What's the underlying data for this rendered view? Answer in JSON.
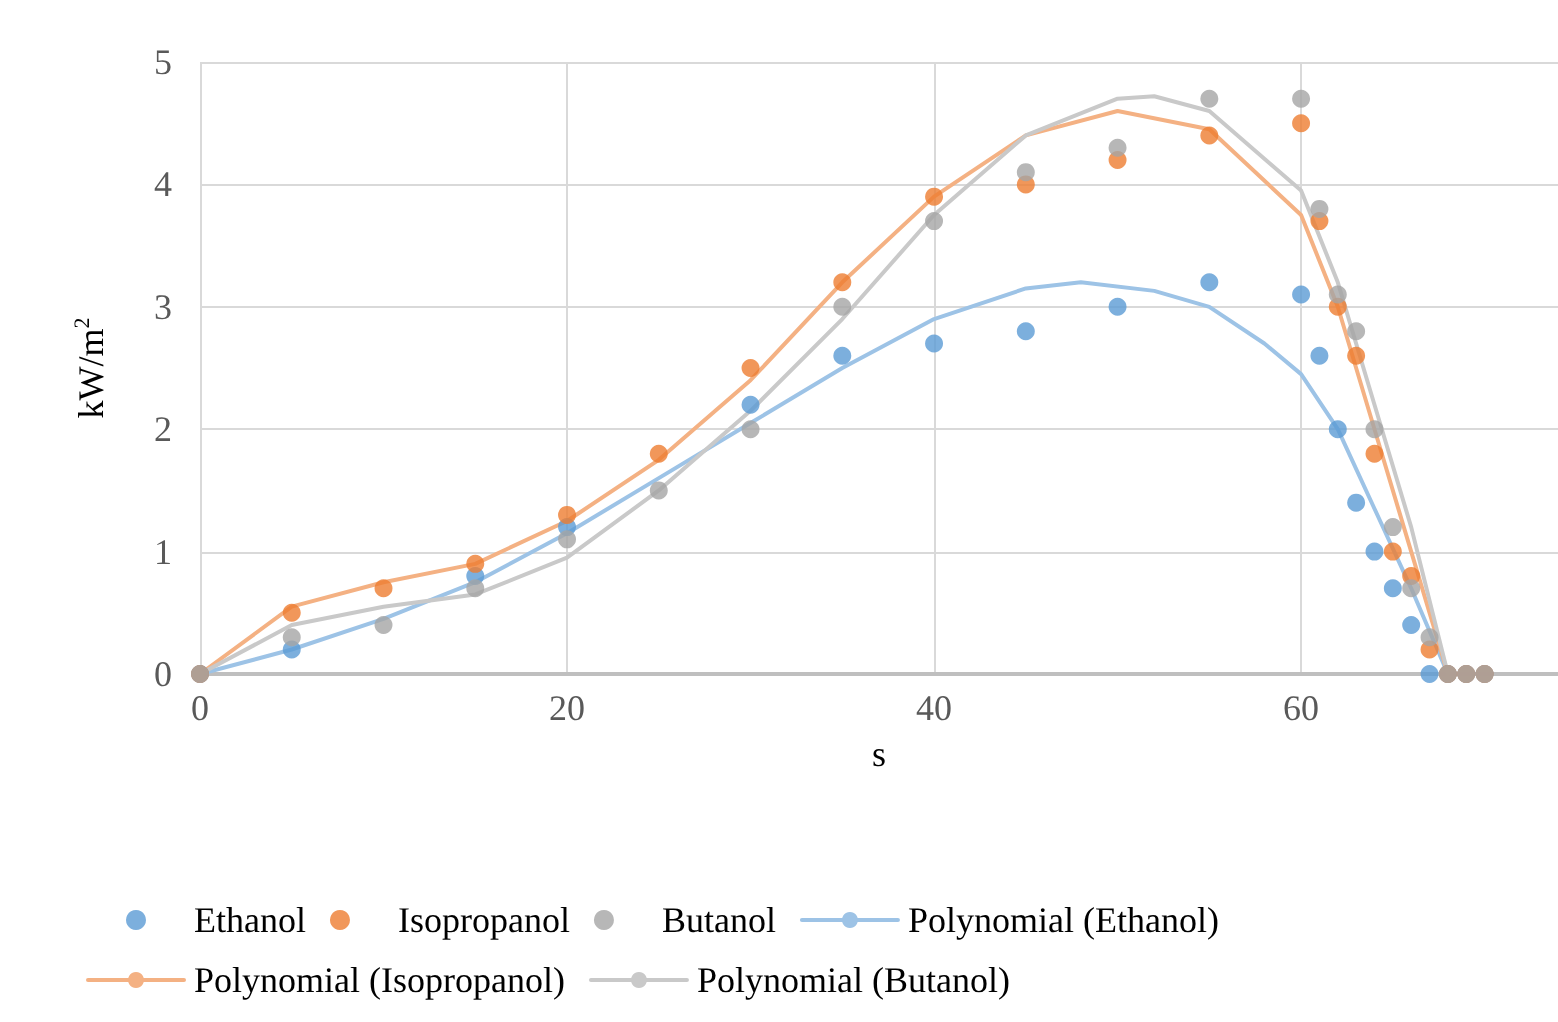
{
  "chart_data": {
    "type": "scatter",
    "xlabel": "s",
    "ylabel": "kW/m$^{2}$",
    "xlim": [
      0,
      74
    ],
    "xticks": [
      0,
      20,
      40,
      60
    ],
    "ylim": [
      0,
      5
    ],
    "yticks": [
      0,
      1,
      2,
      3,
      4,
      5
    ],
    "grid": true,
    "legend": "bottom",
    "marker": "circle",
    "x": [
      0,
      5,
      10,
      15,
      20,
      25,
      30,
      35,
      40,
      45,
      50,
      55,
      60,
      61,
      62,
      63,
      64,
      65,
      66,
      67,
      68,
      69,
      70
    ],
    "series": [
      {
        "name": "Ethanol",
        "color": "#5b9bd5",
        "values": [
          0,
          0.2,
          null,
          0.8,
          1.2,
          null,
          2.2,
          2.6,
          2.7,
          2.8,
          3.0,
          3.2,
          3.1,
          2.6,
          2.0,
          1.4,
          1.0,
          0.7,
          0.4,
          0,
          0,
          0,
          0
        ]
      },
      {
        "name": "Isopropanol",
        "color": "#ed7d31",
        "values": [
          0,
          0.5,
          0.7,
          0.9,
          1.3,
          1.8,
          2.5,
          3.2,
          3.9,
          4.0,
          4.2,
          4.4,
          4.5,
          3.7,
          3.0,
          2.6,
          1.8,
          1.0,
          0.8,
          0.2,
          0,
          0,
          0
        ]
      },
      {
        "name": "Butanol",
        "color": "#a5a5a5",
        "values": [
          0,
          0.3,
          0.4,
          0.7,
          1.1,
          1.5,
          2.0,
          3.0,
          3.7,
          4.1,
          4.3,
          4.7,
          4.7,
          3.8,
          3.1,
          2.8,
          2.0,
          1.2,
          0.7,
          0.3,
          0,
          0,
          0
        ]
      },
      {
        "name": "Polynomial (Ethanol)",
        "type": "line",
        "marker": "none",
        "line_style": "solid",
        "color": "#9dc3e6",
        "x": [
          0,
          5,
          10,
          15,
          20,
          25,
          30,
          35,
          40,
          45,
          48,
          52,
          55,
          58,
          60,
          62,
          64,
          66,
          68
        ],
        "values": [
          0,
          0.2,
          0.45,
          0.75,
          1.15,
          1.6,
          2.05,
          2.5,
          2.9,
          3.15,
          3.2,
          3.13,
          3.0,
          2.7,
          2.45,
          2.0,
          1.35,
          0.7,
          0
        ]
      },
      {
        "name": "Polynomial (Isopropanol)",
        "type": "line",
        "marker": "none",
        "line_style": "solid",
        "color": "#f4b183",
        "x": [
          0,
          5,
          10,
          15,
          20,
          25,
          30,
          35,
          40,
          45,
          50,
          55,
          60,
          62,
          64,
          66,
          68
        ],
        "values": [
          0,
          0.55,
          0.75,
          0.9,
          1.25,
          1.75,
          2.4,
          3.2,
          3.9,
          4.4,
          4.6,
          4.45,
          3.75,
          3.0,
          2.0,
          1.0,
          0
        ]
      },
      {
        "name": "Polynomial (Butanol)",
        "type": "line",
        "marker": "none",
        "line_style": "solid",
        "color": "#c9c9c9",
        "x": [
          0,
          5,
          10,
          15,
          20,
          25,
          30,
          35,
          40,
          45,
          50,
          52,
          55,
          60,
          62,
          64,
          66,
          68
        ],
        "values": [
          0,
          0.4,
          0.55,
          0.65,
          0.95,
          1.5,
          2.15,
          2.9,
          3.75,
          4.4,
          4.7,
          4.72,
          4.6,
          3.95,
          3.2,
          2.2,
          1.2,
          0
        ]
      }
    ]
  }
}
